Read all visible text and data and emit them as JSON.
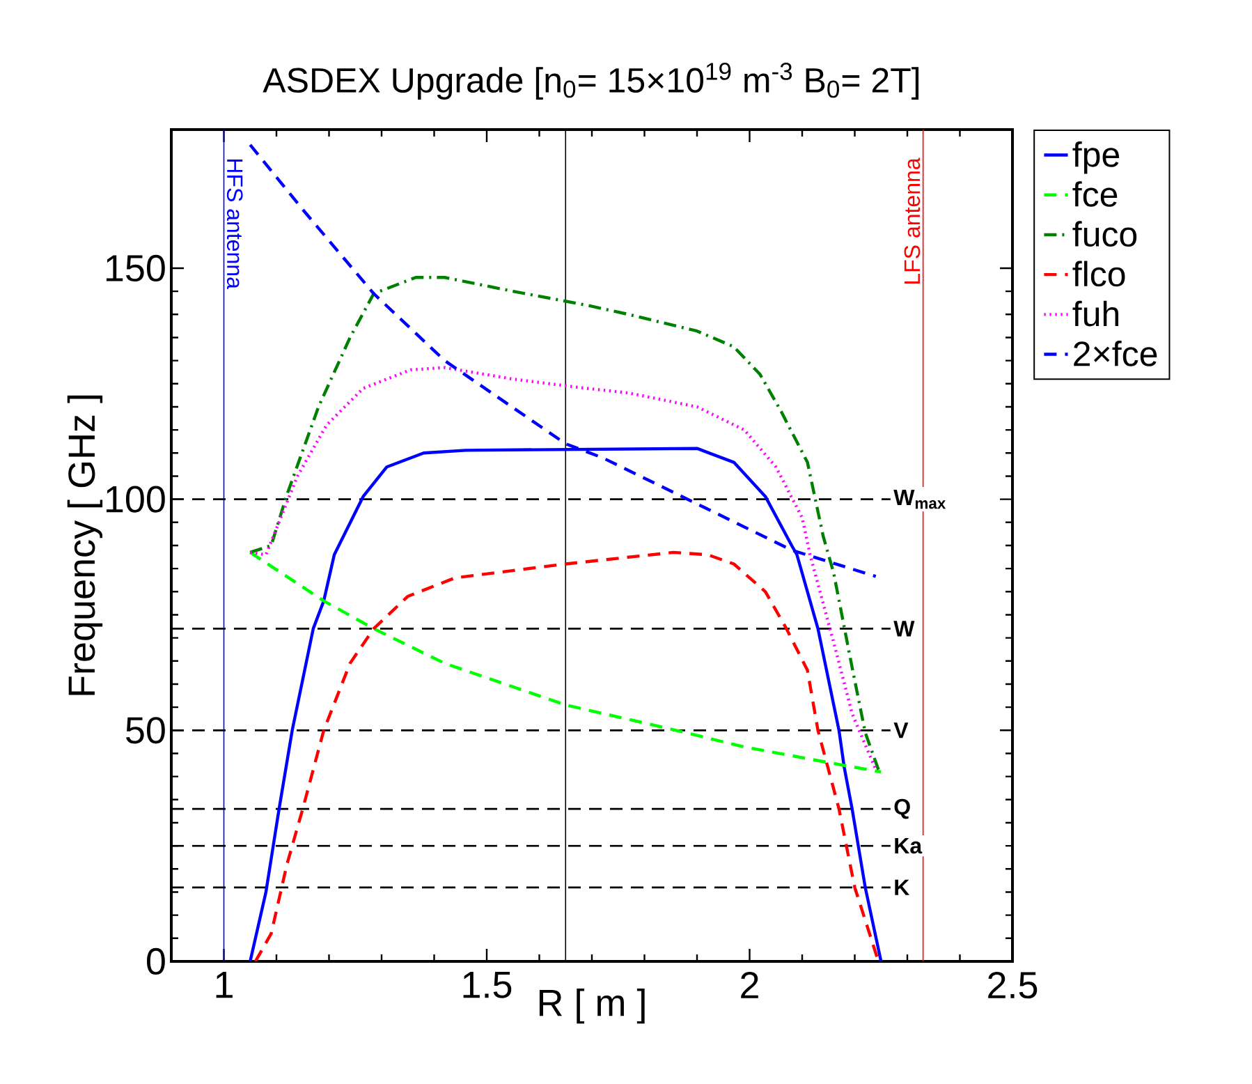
{
  "chart_data": {
    "type": "line",
    "title": "ASDEX Upgrade [n$_{0}$= 15×10$^{19}$ m$^{-3}$ B$_{0}$= 2T]",
    "xlabel": "R [ m ]",
    "ylabel": "Frequency [ GHz ]",
    "xlim": [
      0.9,
      2.5
    ],
    "ylim": [
      0,
      180
    ],
    "xticks": [
      1,
      1.5,
      2,
      2.5
    ],
    "yticks": [
      0,
      50,
      100,
      150
    ],
    "legend": "right",
    "marker": "none",
    "series": [
      {
        "name": "fpe",
        "color": "#0000ff",
        "line_style": "solid",
        "x": [
          1.05,
          1.08,
          1.105,
          1.13,
          1.17,
          1.19,
          1.21,
          1.265,
          1.31,
          1.38,
          1.46,
          1.9,
          1.97,
          2.03,
          2.08,
          2.09,
          2.13,
          2.17,
          2.18,
          2.195,
          2.22,
          2.25
        ],
        "values": [
          0,
          15,
          33,
          50,
          72,
          78,
          88,
          100.6,
          107,
          110,
          110.6,
          111,
          108,
          100.6,
          90,
          88,
          72,
          50,
          42,
          33,
          16,
          0
        ]
      },
      {
        "name": "fce",
        "color": "#00ff00",
        "line_style": "dashed",
        "x": [
          1.05,
          1.19,
          1.285,
          1.42,
          1.65,
          1.86,
          1.99,
          2.18,
          2.25
        ],
        "values": [
          88.5,
          78,
          72,
          64.5,
          55.5,
          50,
          46.4,
          42.4,
          41
        ]
      },
      {
        "name": "fuco",
        "color": "#008000",
        "line_style": "dashdot",
        "x": [
          1.05,
          1.09,
          1.12,
          1.18,
          1.24,
          1.285,
          1.365,
          1.42,
          1.55,
          1.69,
          1.77,
          1.9,
          1.97,
          2.02,
          2.06,
          2.11,
          2.14,
          2.16,
          2.195,
          2.22,
          2.245
        ],
        "values": [
          88.5,
          90,
          101,
          120,
          135,
          144.5,
          148,
          148,
          145,
          142,
          140,
          136.4,
          133,
          127,
          119,
          108,
          92,
          84,
          63.6,
          49.5,
          41.5
        ]
      },
      {
        "name": "flco",
        "color": "#ff0000",
        "line_style": "dashed",
        "x": [
          1.06,
          1.09,
          1.12,
          1.15,
          1.19,
          1.24,
          1.285,
          1.35,
          1.44,
          1.65,
          1.855,
          1.92,
          1.97,
          2.03,
          2.07,
          2.11,
          2.13,
          2.17,
          2.2,
          2.245
        ],
        "values": [
          0,
          6,
          21,
          33,
          50,
          64.5,
          72,
          79,
          83,
          86,
          88.5,
          88,
          86,
          80,
          72,
          63,
          50,
          33,
          16,
          0
        ]
      },
      {
        "name": "fuh",
        "color": "#ff00ff",
        "line_style": "dotted",
        "x": [
          1.05,
          1.08,
          1.14,
          1.195,
          1.265,
          1.355,
          1.42,
          1.55,
          1.69,
          1.77,
          1.9,
          1.99,
          2.05,
          2.1,
          2.115,
          2.16,
          2.195,
          2.24
        ],
        "values": [
          88.5,
          88,
          105,
          116,
          124,
          128,
          128.5,
          126,
          124,
          123,
          120,
          115,
          107,
          96,
          88,
          69,
          53.6,
          41.5
        ]
      },
      {
        "name": "2×fce",
        "color": "#0000ff",
        "line_style": "dashed",
        "x": [
          1.05,
          1.15,
          1.285,
          1.42,
          1.65,
          1.72,
          1.9,
          2.08,
          2.24
        ],
        "values": [
          176.7,
          162.7,
          144.5,
          130,
          112,
          109,
          99,
          89,
          83.3
        ]
      }
    ],
    "ref_lines": [
      {
        "axis": "x",
        "value": 1,
        "label": "HFS antenna",
        "color": "#0000ff",
        "line_style": "solid"
      },
      {
        "axis": "x",
        "value": 1.65,
        "color": "#000000",
        "line_style": "solid"
      },
      {
        "axis": "x",
        "value": 2.33,
        "label": "LFS antenna",
        "color": "#ff0000",
        "line_style": "solid"
      },
      {
        "axis": "y",
        "value": 100,
        "label": "W$_{max}$",
        "color": "#000000",
        "line_style": "dashed"
      },
      {
        "axis": "y",
        "value": 72,
        "label": "W",
        "color": "#000000",
        "line_style": "dashed"
      },
      {
        "axis": "y",
        "value": 50,
        "label": "V",
        "color": "#000000",
        "line_style": "dashed"
      },
      {
        "axis": "y",
        "value": 33,
        "label": "Q",
        "color": "#000000",
        "line_style": "dashed"
      },
      {
        "axis": "y",
        "value": 25,
        "label": "Ka",
        "color": "#000000",
        "line_style": "dashed"
      },
      {
        "axis": "y",
        "value": 16,
        "label": "K",
        "color": "#000000",
        "line_style": "dashed"
      }
    ]
  }
}
